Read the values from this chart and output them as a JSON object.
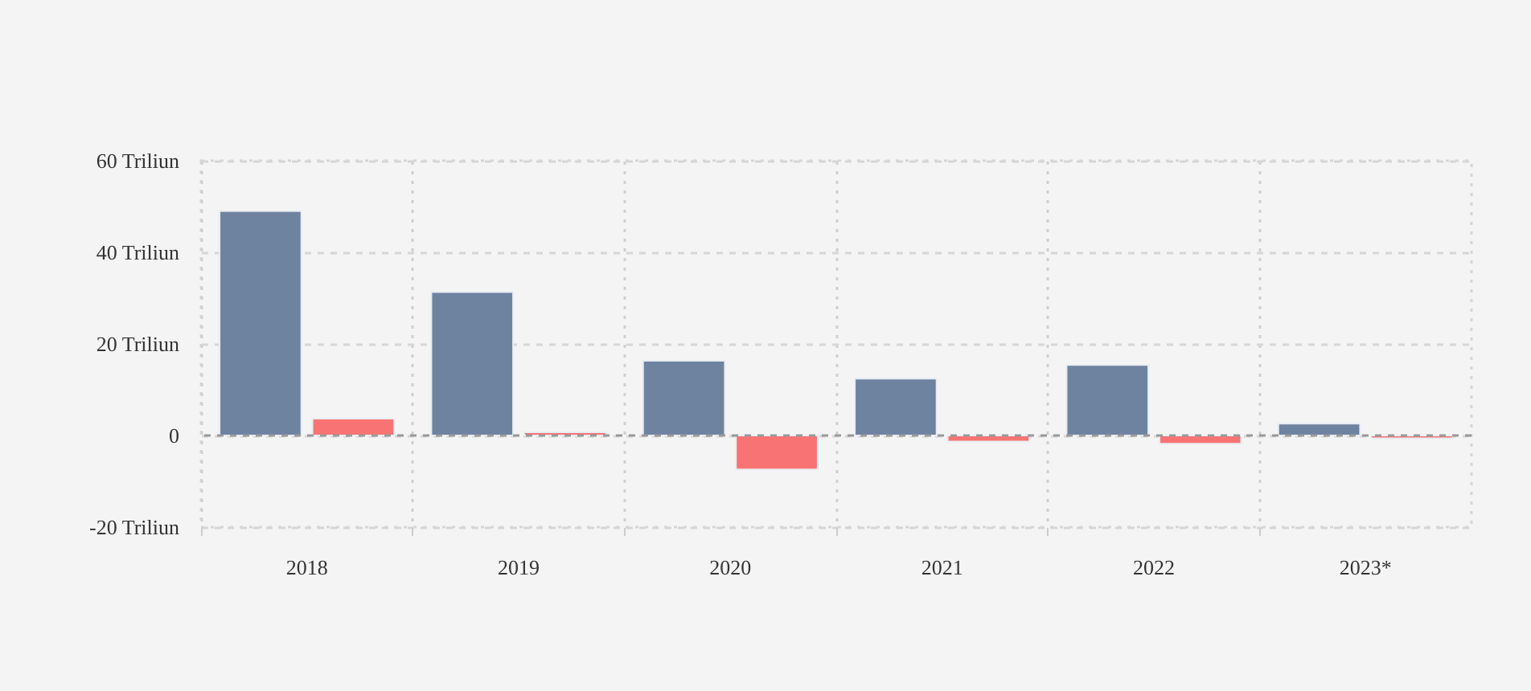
{
  "chart_data": {
    "type": "bar",
    "categories": [
      "2018",
      "2019",
      "2020",
      "2021",
      "2022",
      "2023*"
    ],
    "series": [
      {
        "color": "#6e83a0",
        "values": [
          49,
          31.3,
          16.3,
          12.4,
          15.4,
          2.6
        ]
      },
      {
        "color": "#f87373",
        "values": [
          3.7,
          0.7,
          -7.4,
          -1.3,
          -1.8,
          -0.6
        ]
      }
    ],
    "ylim": [
      -20,
      60
    ],
    "yticks": [
      {
        "value": -20,
        "label": "-20 Triliun"
      },
      0,
      {
        "value": 20,
        "label": "20 Triliun"
      },
      {
        "value": 40,
        "label": "40 Triliun"
      },
      {
        "value": 60,
        "label": "60 Triliun"
      }
    ],
    "ref_lines": [
      {
        "axis": "y",
        "value": 0,
        "color": "#9a9a9a",
        "line_style": "dashed"
      }
    ],
    "grid": true,
    "legend": false
  }
}
